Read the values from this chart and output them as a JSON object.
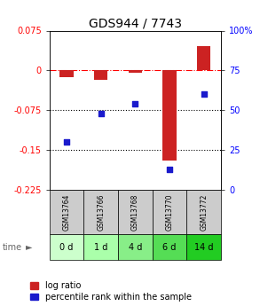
{
  "title": "GDS944 / 7743",
  "samples": [
    "GSM13764",
    "GSM13766",
    "GSM13768",
    "GSM13770",
    "GSM13772"
  ],
  "time_labels": [
    "0 d",
    "1 d",
    "4 d",
    "6 d",
    "14 d"
  ],
  "log_ratio": [
    -0.012,
    -0.018,
    -0.005,
    -0.17,
    0.045
  ],
  "percentile_rank": [
    30,
    48,
    54,
    13,
    60
  ],
  "ylim_left": [
    -0.225,
    0.075
  ],
  "ylim_right": [
    0,
    100
  ],
  "yticks_left": [
    0.075,
    0,
    -0.075,
    -0.15,
    -0.225
  ],
  "yticks_right": [
    100,
    75,
    50,
    25,
    0
  ],
  "bar_color": "#cc2222",
  "dot_color": "#1a1acc",
  "bg_color": "#ffffff",
  "gsm_bg": "#cccccc",
  "time_bg_colors": [
    "#ccffcc",
    "#aaffaa",
    "#88ee88",
    "#55dd55",
    "#22cc22"
  ],
  "title_fontsize": 10,
  "tick_fontsize": 7,
  "legend_fontsize": 7,
  "label_fontsize": 7
}
